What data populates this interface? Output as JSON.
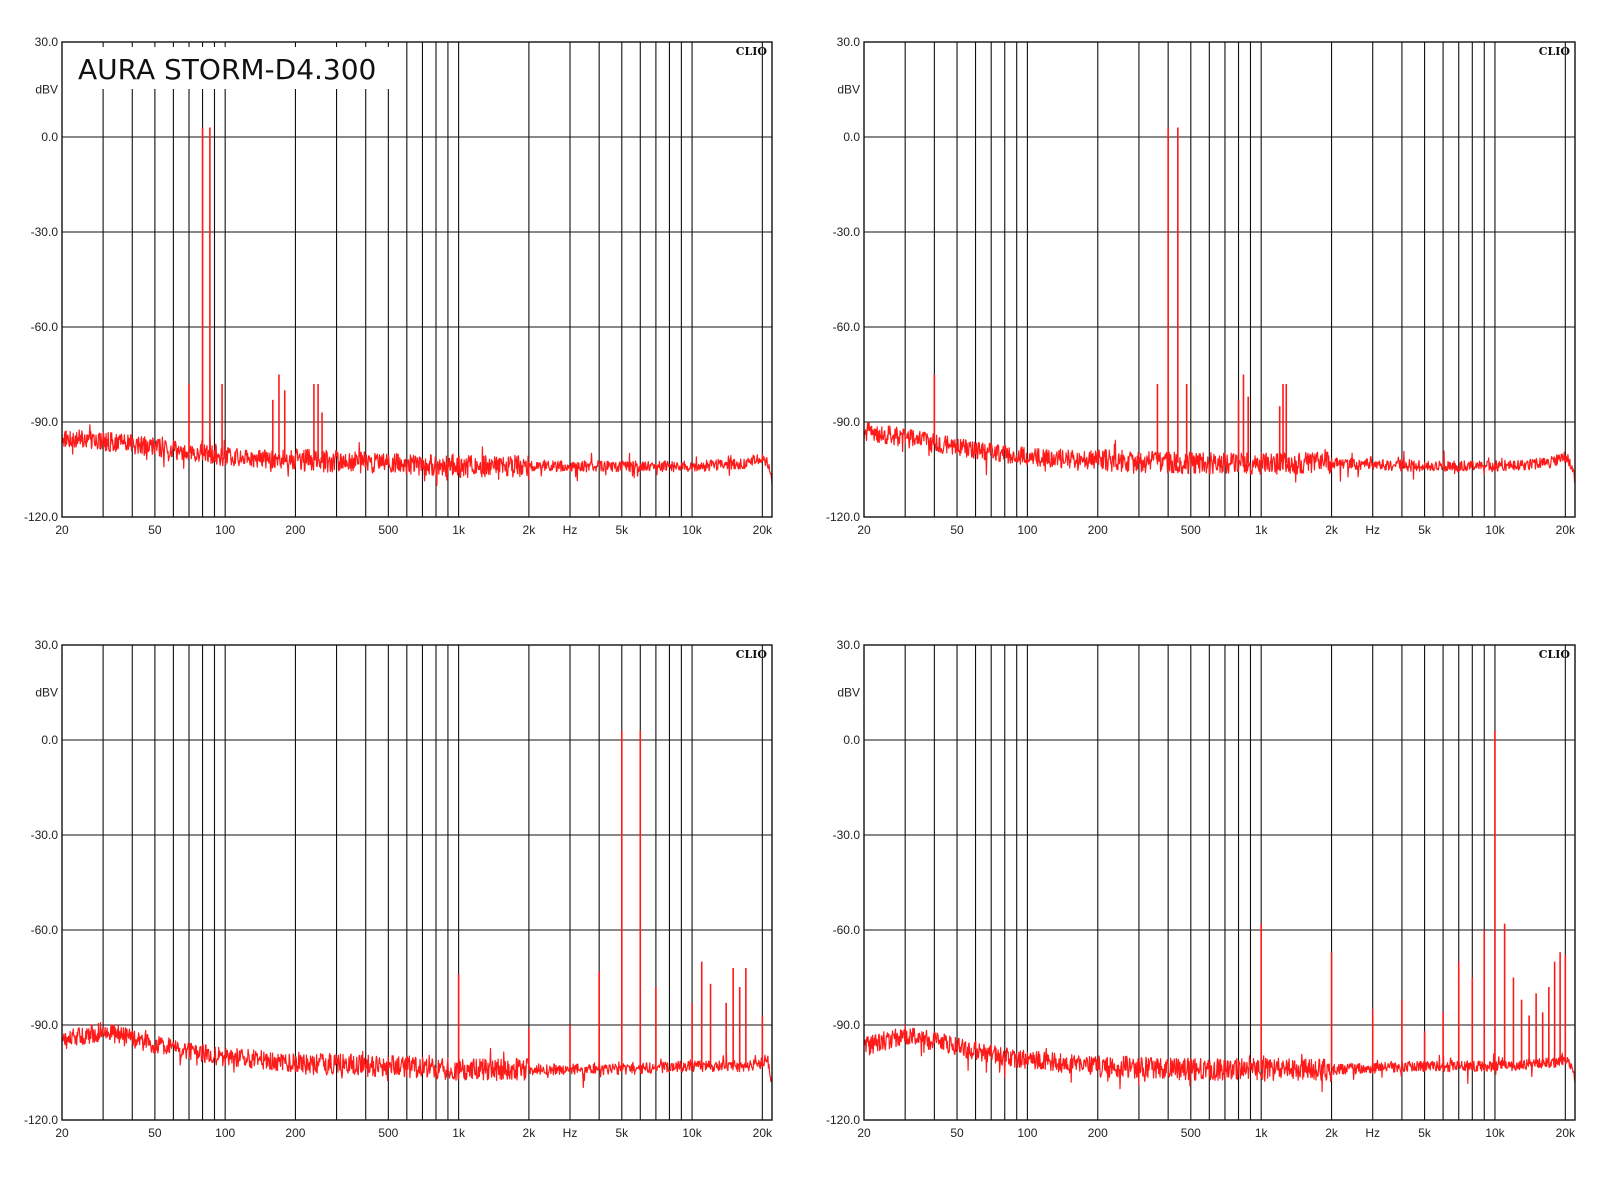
{
  "title": "AURA STORM-D4.300",
  "chart_data": [
    {
      "type": "line",
      "badge": "CLIO",
      "unit": "dBV",
      "xunit": "Hz",
      "xscale": "log",
      "xlim": [
        20,
        22000
      ],
      "ylim": [
        -120,
        30
      ],
      "grid": true,
      "yticks": [
        "30.0",
        "0.0",
        "-30.0",
        "-60.0",
        "-90.0",
        "-120.0"
      ],
      "xticks": [
        "20",
        "50",
        "100",
        "200",
        "500",
        "1k",
        "2k",
        "5k",
        "10k",
        "20k"
      ],
      "noise_floor": {
        "x": [
          20,
          30,
          50,
          80,
          100,
          200,
          500,
          1000,
          2000,
          5000,
          10000,
          17000,
          20000,
          21000,
          22000
        ],
        "y": [
          -95,
          -96,
          -98,
          -100,
          -101,
          -102,
          -103,
          -104,
          -104,
          -104,
          -104,
          -103,
          -101,
          -103,
          -108
        ]
      },
      "peaks": [
        {
          "x": 70,
          "y": -78
        },
        {
          "x": 80,
          "y": 3
        },
        {
          "x": 86,
          "y": 3
        },
        {
          "x": 97,
          "y": -78
        },
        {
          "x": 160,
          "y": -83
        },
        {
          "x": 170,
          "y": -75
        },
        {
          "x": 180,
          "y": -80
        },
        {
          "x": 240,
          "y": -78
        },
        {
          "x": 250,
          "y": -78
        },
        {
          "x": 260,
          "y": -87
        }
      ]
    },
    {
      "type": "line",
      "badge": "CLIO",
      "unit": "dBV",
      "xunit": "Hz",
      "xscale": "log",
      "xlim": [
        20,
        22000
      ],
      "ylim": [
        -120,
        30
      ],
      "grid": true,
      "yticks": [
        "30.0",
        "0.0",
        "-30.0",
        "-60.0",
        "-90.0",
        "-120.0"
      ],
      "xticks": [
        "20",
        "50",
        "100",
        "200",
        "500",
        "1k",
        "2k",
        "5k",
        "10k",
        "20k"
      ],
      "noise_floor": {
        "x": [
          20,
          30,
          50,
          80,
          100,
          200,
          500,
          1000,
          2000,
          5000,
          10000,
          17000,
          20000,
          21000,
          22000
        ],
        "y": [
          -93,
          -95,
          -98,
          -100,
          -101,
          -102,
          -103,
          -103,
          -103,
          -104,
          -104,
          -103,
          -101,
          -103,
          -108
        ]
      },
      "peaks": [
        {
          "x": 40,
          "y": -75
        },
        {
          "x": 360,
          "y": -78
        },
        {
          "x": 400,
          "y": 3
        },
        {
          "x": 440,
          "y": 3
        },
        {
          "x": 480,
          "y": -78
        },
        {
          "x": 800,
          "y": -83
        },
        {
          "x": 840,
          "y": -75
        },
        {
          "x": 880,
          "y": -82
        },
        {
          "x": 1200,
          "y": -85
        },
        {
          "x": 1240,
          "y": -78
        },
        {
          "x": 1280,
          "y": -78
        }
      ]
    },
    {
      "type": "line",
      "badge": "CLIO",
      "unit": "dBV",
      "xunit": "Hz",
      "xscale": "log",
      "xlim": [
        20,
        22000
      ],
      "ylim": [
        -120,
        30
      ],
      "grid": true,
      "yticks": [
        "30.0",
        "0.0",
        "-30.0",
        "-60.0",
        "-90.0",
        "-120.0"
      ],
      "xticks": [
        "20",
        "50",
        "100",
        "200",
        "500",
        "1k",
        "2k",
        "5k",
        "10k",
        "20k"
      ],
      "noise_floor": {
        "x": [
          20,
          30,
          50,
          80,
          100,
          200,
          500,
          1000,
          2000,
          5000,
          10000,
          17000,
          20000,
          21000,
          22000
        ],
        "y": [
          -95,
          -92,
          -96,
          -99,
          -100,
          -102,
          -103,
          -104,
          -104,
          -104,
          -103,
          -103,
          -102,
          -100,
          -108
        ]
      },
      "peaks": [
        {
          "x": 1000,
          "y": -74
        },
        {
          "x": 2000,
          "y": -91
        },
        {
          "x": 3000,
          "y": -90
        },
        {
          "x": 4000,
          "y": -73
        },
        {
          "x": 5000,
          "y": 3
        },
        {
          "x": 6000,
          "y": 3
        },
        {
          "x": 7000,
          "y": -78
        },
        {
          "x": 10000,
          "y": -83
        },
        {
          "x": 11000,
          "y": -70
        },
        {
          "x": 12000,
          "y": -77
        },
        {
          "x": 14000,
          "y": -83
        },
        {
          "x": 15000,
          "y": -72
        },
        {
          "x": 16000,
          "y": -78
        },
        {
          "x": 17000,
          "y": -72
        },
        {
          "x": 20000,
          "y": -87
        }
      ]
    },
    {
      "type": "line",
      "badge": "CLIO",
      "unit": "dBV",
      "xunit": "Hz",
      "xscale": "log",
      "xlim": [
        20,
        22000
      ],
      "ylim": [
        -120,
        30
      ],
      "grid": true,
      "yticks": [
        "30.0",
        "0.0",
        "-30.0",
        "-60.0",
        "-90.0",
        "-120.0"
      ],
      "xticks": [
        "20",
        "50",
        "100",
        "200",
        "500",
        "1k",
        "2k",
        "5k",
        "10k",
        "20k"
      ],
      "noise_floor": {
        "x": [
          20,
          30,
          50,
          80,
          100,
          200,
          500,
          1000,
          2000,
          5000,
          10000,
          17000,
          20000,
          21000,
          22000
        ],
        "y": [
          -97,
          -93,
          -97,
          -100,
          -101,
          -103,
          -104,
          -104,
          -104,
          -103,
          -103,
          -102,
          -101,
          -102,
          -108
        ]
      },
      "peaks": [
        {
          "x": 1000,
          "y": -58
        },
        {
          "x": 2000,
          "y": -67
        },
        {
          "x": 3000,
          "y": -85
        },
        {
          "x": 4000,
          "y": -82
        },
        {
          "x": 5000,
          "y": -92
        },
        {
          "x": 6000,
          "y": -86
        },
        {
          "x": 7000,
          "y": -70
        },
        {
          "x": 8000,
          "y": -75
        },
        {
          "x": 9000,
          "y": -60
        },
        {
          "x": 10000,
          "y": 3
        },
        {
          "x": 11000,
          "y": -58
        },
        {
          "x": 12000,
          "y": -75
        },
        {
          "x": 13000,
          "y": -82
        },
        {
          "x": 14000,
          "y": -87
        },
        {
          "x": 15000,
          "y": -80
        },
        {
          "x": 16000,
          "y": -86
        },
        {
          "x": 17000,
          "y": -78
        },
        {
          "x": 18000,
          "y": -70
        },
        {
          "x": 19000,
          "y": -67
        },
        {
          "x": 20000,
          "y": -68
        }
      ]
    }
  ]
}
